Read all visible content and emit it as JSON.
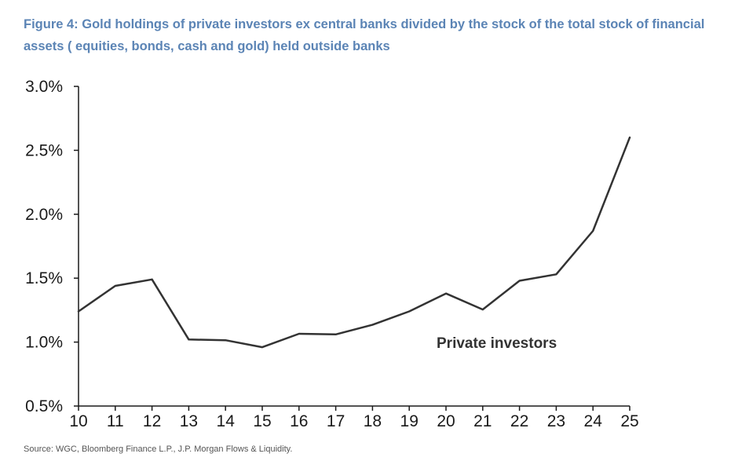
{
  "title": "Figure 4: Gold holdings of private investors ex central banks divided by the stock of the total stock of financial assets ( equities, bonds, cash and gold) held outside banks",
  "source": "Source: WGC, Bloomberg Finance L.P., J.P. Morgan Flows & Liquidity.",
  "colors": {
    "title": "#5b84b5",
    "line": "#333333",
    "axis": "#1a1a1a"
  },
  "chart_data": {
    "type": "line",
    "title": "Figure 4: Gold holdings of private investors ex central banks divided by the stock of the total stock of financial assets ( equities, bonds, cash and gold) held outside banks",
    "xlabel": "",
    "ylabel": "",
    "x": [
      "10",
      "11",
      "12",
      "13",
      "14",
      "15",
      "16",
      "17",
      "18",
      "19",
      "20",
      "21",
      "22",
      "23",
      "24",
      "25"
    ],
    "series": [
      {
        "name": "Private investors",
        "values": [
          1.24,
          1.44,
          1.49,
          1.02,
          1.015,
          0.96,
          1.065,
          1.06,
          1.135,
          1.24,
          1.38,
          1.255,
          1.48,
          1.53,
          1.87,
          2.6
        ]
      }
    ],
    "ylim": [
      0.5,
      3.0
    ],
    "yticks": [
      0.5,
      1.0,
      1.5,
      2.0,
      2.5,
      3.0
    ],
    "ytick_labels": [
      "0.5%",
      "1.0%",
      "1.5%",
      "2.0%",
      "2.5%",
      "3.0%"
    ],
    "grid": false,
    "legend": "inline label near line"
  }
}
